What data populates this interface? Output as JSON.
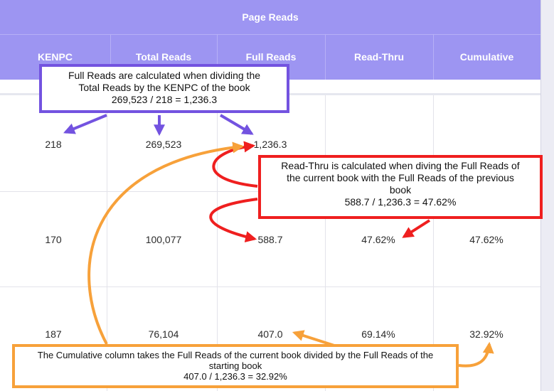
{
  "table": {
    "group_header": "Page Reads",
    "columns": [
      "KENPC",
      "Total Reads",
      "Full Reads",
      "Read-Thru",
      "Cumulative"
    ],
    "rows": [
      [
        "218",
        "269,523",
        "1,236.3",
        "",
        ""
      ],
      [
        "170",
        "100,077",
        "588.7",
        "47.62%",
        "47.62%"
      ],
      [
        "187",
        "76,104",
        "407.0",
        "69.14%",
        "32.92%"
      ]
    ]
  },
  "callouts": {
    "full_reads": [
      "Full Reads are calculated when dividing the",
      "Total Reads by the KENPC of the book",
      "269,523 / 218 = 1,236.3"
    ],
    "read_thru": [
      "Read-Thru is calculated when diving the Full Reads of",
      "the current book with the Full Reads of the previous",
      "book",
      "588.7 / 1,236.3 = 47.62%"
    ],
    "cumulative": [
      "The Cumulative column takes the Full Reads of the current book divided by the Full Reads of the",
      "starting book",
      "407.0 / 1,236.3 = 32.92%"
    ]
  },
  "colors": {
    "header": "#9d95f2",
    "full_reads_annotation": "#7353e0",
    "read_thru_annotation": "#ef1f1f",
    "cumulative_annotation": "#f7a13a"
  }
}
